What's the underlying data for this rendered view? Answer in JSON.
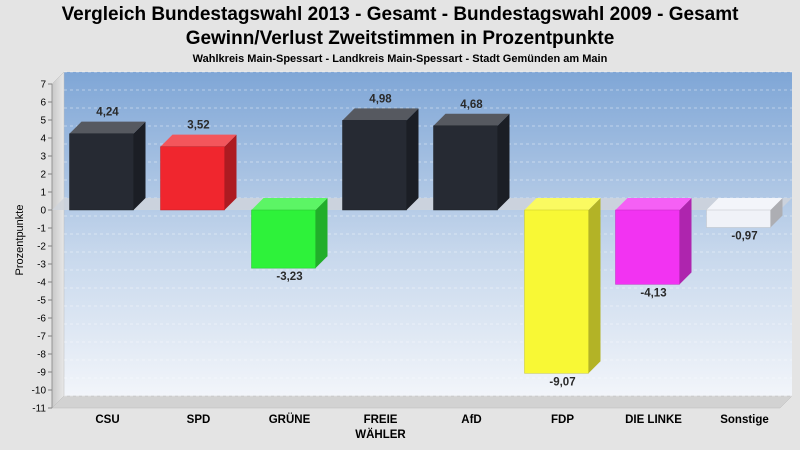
{
  "title": "Vergleich Bundestagswahl 2013 - Gesamt - Bundestagswahl 2009 - Gesamt",
  "subtitle": "Gewinn/Verlust Zweitstimmen in Prozentpunkte",
  "region": "Wahlkreis Main-Spessart - Landkreis Main-Spessart - Stadt Gemünden am Main",
  "chart_data": {
    "type": "bar",
    "title": "Vergleich Bundestagswahl 2013 - Gesamt - Bundestagswahl 2009 - Gesamt",
    "subtitle": "Gewinn/Verlust Zweitstimmen in Prozentpunkte",
    "ylabel": "Prozentpunkte",
    "xlabel": "",
    "ylim": [
      -11,
      7
    ],
    "yticks": [
      7,
      6,
      5,
      4,
      3,
      2,
      1,
      0,
      -1,
      -2,
      -3,
      -4,
      -5,
      -6,
      -7,
      -8,
      -9,
      -10,
      -11
    ],
    "grid": true,
    "categories": [
      [
        "CSU"
      ],
      [
        "SPD"
      ],
      [
        "GRÜNE"
      ],
      [
        "FREIE",
        "WÄHLER"
      ],
      [
        "AfD"
      ],
      [
        "FDP"
      ],
      [
        "DIE LINKE"
      ],
      [
        "Sonstige"
      ]
    ],
    "values": [
      4.24,
      3.52,
      -3.23,
      4.98,
      4.68,
      -9.07,
      -4.13,
      -0.97
    ],
    "value_labels": [
      "4,24",
      "3,52",
      "-3,23",
      "4,98",
      "4,68",
      "-9,07",
      "-4,13",
      "-0,97"
    ],
    "colors": [
      "#262a33",
      "#f0262e",
      "#2ef23a",
      "#262a33",
      "#262a33",
      "#f8f835",
      "#f233f2",
      "#f0f2f8"
    ]
  }
}
